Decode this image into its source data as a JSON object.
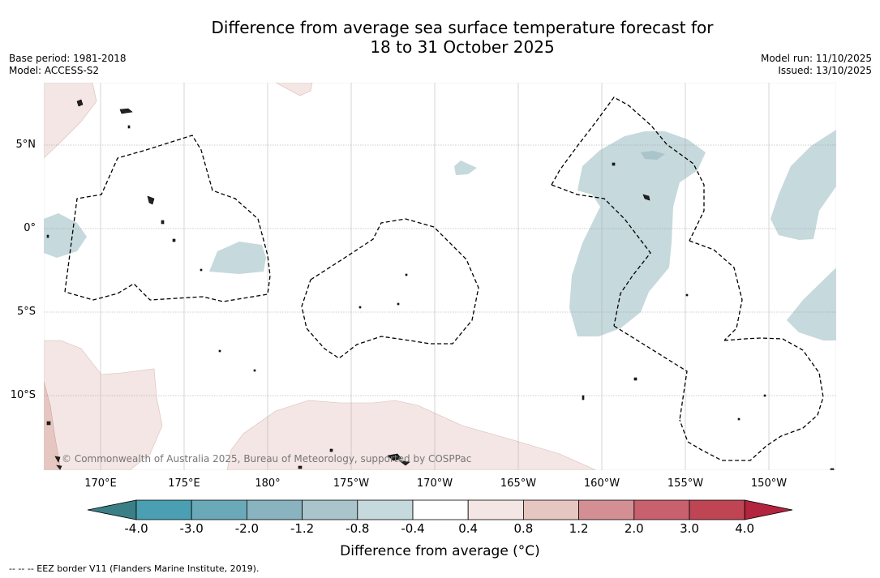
{
  "title": {
    "line1": "Difference from average sea surface temperature forecast for",
    "line2": "18 to 31 October 2025"
  },
  "meta": {
    "base_period": "Base period: 1981-2018",
    "model": "Model: ACCESS-S2",
    "model_run": "Model run: 11/10/2025",
    "issued": "Issued: 13/10/2025"
  },
  "map": {
    "lat_labels": [
      "5°N",
      "0°",
      "5°S",
      "10°S"
    ],
    "lon_labels": [
      "170°E",
      "175°E",
      "180°",
      "175°W",
      "170°W",
      "165°W",
      "160°W",
      "155°W",
      "150°W"
    ],
    "copyright": "© Commonwealth of Australia 2025, Bureau of Meteorology, supported by COSPPac"
  },
  "colorbar": {
    "ticks": [
      "-4.0",
      "-3.0",
      "-2.0",
      "-1.2",
      "-0.8",
      "-0.4",
      "0.4",
      "0.8",
      "1.2",
      "2.0",
      "3.0",
      "4.0"
    ],
    "colors": [
      "#3a7f86",
      "#4aa0b2",
      "#6aa9b7",
      "#89b3be",
      "#a9c4ca",
      "#c6d9dc",
      "#ffffff",
      "#f4e6e4",
      "#e6c6c0",
      "#d48f95",
      "#c8606d",
      "#bf4555",
      "#b3243e"
    ],
    "label": "Difference from average (°C)"
  },
  "footnote": "--  --  -- EEZ border V11 (Flanders Marine Institute, 2019)."
}
